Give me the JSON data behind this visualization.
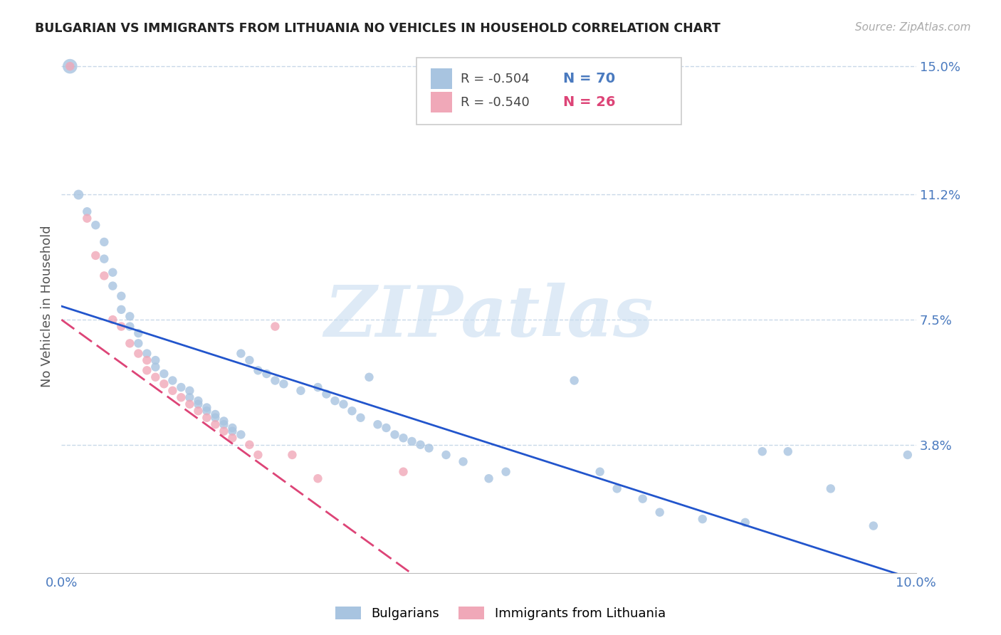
{
  "title": "BULGARIAN VS IMMIGRANTS FROM LITHUANIA NO VEHICLES IN HOUSEHOLD CORRELATION CHART",
  "source": "Source: ZipAtlas.com",
  "ylabel": "No Vehicles in Household",
  "xlim": [
    0.0,
    0.1
  ],
  "ylim": [
    0.0,
    0.158
  ],
  "blue_color": "#a8c4e0",
  "pink_color": "#f0a8b8",
  "blue_line_color": "#2255cc",
  "pink_line_color": "#dd4477",
  "grid_color": "#c8d8e8",
  "label_color": "#4a7abf",
  "watermark": "ZIPatlas",
  "legend_r_blue": "R = -0.504",
  "legend_n_blue": "N = 70",
  "legend_r_pink": "R = -0.540",
  "legend_n_pink": "N = 26",
  "legend_label_blue": "Bulgarians",
  "legend_label_pink": "Immigrants from Lithuania",
  "blue_line_x0": 0.0,
  "blue_line_y0": 0.079,
  "blue_line_x1": 0.1,
  "blue_line_y1": -0.002,
  "pink_line_x0": 0.0,
  "pink_line_y0": 0.075,
  "pink_line_x1": 0.042,
  "pink_line_y1": -0.002,
  "blue_points": [
    [
      0.001,
      0.15,
      220
    ],
    [
      0.002,
      0.112,
      100
    ],
    [
      0.003,
      0.107,
      80
    ],
    [
      0.004,
      0.103,
      80
    ],
    [
      0.005,
      0.098,
      80
    ],
    [
      0.005,
      0.093,
      80
    ],
    [
      0.006,
      0.089,
      80
    ],
    [
      0.006,
      0.085,
      80
    ],
    [
      0.007,
      0.082,
      80
    ],
    [
      0.007,
      0.078,
      80
    ],
    [
      0.008,
      0.076,
      80
    ],
    [
      0.008,
      0.073,
      80
    ],
    [
      0.009,
      0.071,
      80
    ],
    [
      0.009,
      0.068,
      80
    ],
    [
      0.01,
      0.065,
      80
    ],
    [
      0.011,
      0.063,
      80
    ],
    [
      0.011,
      0.061,
      80
    ],
    [
      0.012,
      0.059,
      80
    ],
    [
      0.013,
      0.057,
      80
    ],
    [
      0.014,
      0.055,
      80
    ],
    [
      0.015,
      0.054,
      80
    ],
    [
      0.015,
      0.052,
      80
    ],
    [
      0.016,
      0.051,
      80
    ],
    [
      0.016,
      0.05,
      80
    ],
    [
      0.017,
      0.049,
      80
    ],
    [
      0.017,
      0.048,
      80
    ],
    [
      0.018,
      0.047,
      80
    ],
    [
      0.018,
      0.046,
      80
    ],
    [
      0.019,
      0.045,
      80
    ],
    [
      0.019,
      0.044,
      80
    ],
    [
      0.02,
      0.043,
      80
    ],
    [
      0.02,
      0.042,
      80
    ],
    [
      0.021,
      0.041,
      80
    ],
    [
      0.021,
      0.065,
      80
    ],
    [
      0.022,
      0.063,
      80
    ],
    [
      0.023,
      0.06,
      80
    ],
    [
      0.024,
      0.059,
      80
    ],
    [
      0.025,
      0.057,
      80
    ],
    [
      0.026,
      0.056,
      80
    ],
    [
      0.028,
      0.054,
      80
    ],
    [
      0.03,
      0.055,
      80
    ],
    [
      0.031,
      0.053,
      80
    ],
    [
      0.032,
      0.051,
      80
    ],
    [
      0.033,
      0.05,
      80
    ],
    [
      0.034,
      0.048,
      80
    ],
    [
      0.035,
      0.046,
      80
    ],
    [
      0.036,
      0.058,
      80
    ],
    [
      0.037,
      0.044,
      80
    ],
    [
      0.038,
      0.043,
      80
    ],
    [
      0.039,
      0.041,
      80
    ],
    [
      0.04,
      0.04,
      80
    ],
    [
      0.041,
      0.039,
      80
    ],
    [
      0.042,
      0.038,
      80
    ],
    [
      0.043,
      0.037,
      80
    ],
    [
      0.045,
      0.035,
      80
    ],
    [
      0.047,
      0.033,
      80
    ],
    [
      0.05,
      0.028,
      80
    ],
    [
      0.052,
      0.03,
      80
    ],
    [
      0.06,
      0.057,
      80
    ],
    [
      0.063,
      0.03,
      80
    ],
    [
      0.065,
      0.025,
      80
    ],
    [
      0.068,
      0.022,
      80
    ],
    [
      0.07,
      0.018,
      80
    ],
    [
      0.075,
      0.016,
      80
    ],
    [
      0.08,
      0.015,
      80
    ],
    [
      0.082,
      0.036,
      80
    ],
    [
      0.085,
      0.036,
      80
    ],
    [
      0.09,
      0.025,
      80
    ],
    [
      0.095,
      0.014,
      80
    ],
    [
      0.099,
      0.035,
      80
    ]
  ],
  "pink_points": [
    [
      0.001,
      0.15,
      80
    ],
    [
      0.003,
      0.105,
      80
    ],
    [
      0.004,
      0.094,
      80
    ],
    [
      0.005,
      0.088,
      80
    ],
    [
      0.006,
      0.075,
      80
    ],
    [
      0.007,
      0.073,
      80
    ],
    [
      0.008,
      0.068,
      80
    ],
    [
      0.009,
      0.065,
      80
    ],
    [
      0.01,
      0.063,
      80
    ],
    [
      0.01,
      0.06,
      80
    ],
    [
      0.011,
      0.058,
      80
    ],
    [
      0.012,
      0.056,
      80
    ],
    [
      0.013,
      0.054,
      80
    ],
    [
      0.014,
      0.052,
      80
    ],
    [
      0.015,
      0.05,
      80
    ],
    [
      0.016,
      0.048,
      80
    ],
    [
      0.017,
      0.046,
      80
    ],
    [
      0.018,
      0.044,
      80
    ],
    [
      0.019,
      0.042,
      80
    ],
    [
      0.02,
      0.04,
      80
    ],
    [
      0.022,
      0.038,
      80
    ],
    [
      0.023,
      0.035,
      80
    ],
    [
      0.025,
      0.073,
      80
    ],
    [
      0.027,
      0.035,
      80
    ],
    [
      0.03,
      0.028,
      80
    ],
    [
      0.04,
      0.03,
      80
    ]
  ]
}
